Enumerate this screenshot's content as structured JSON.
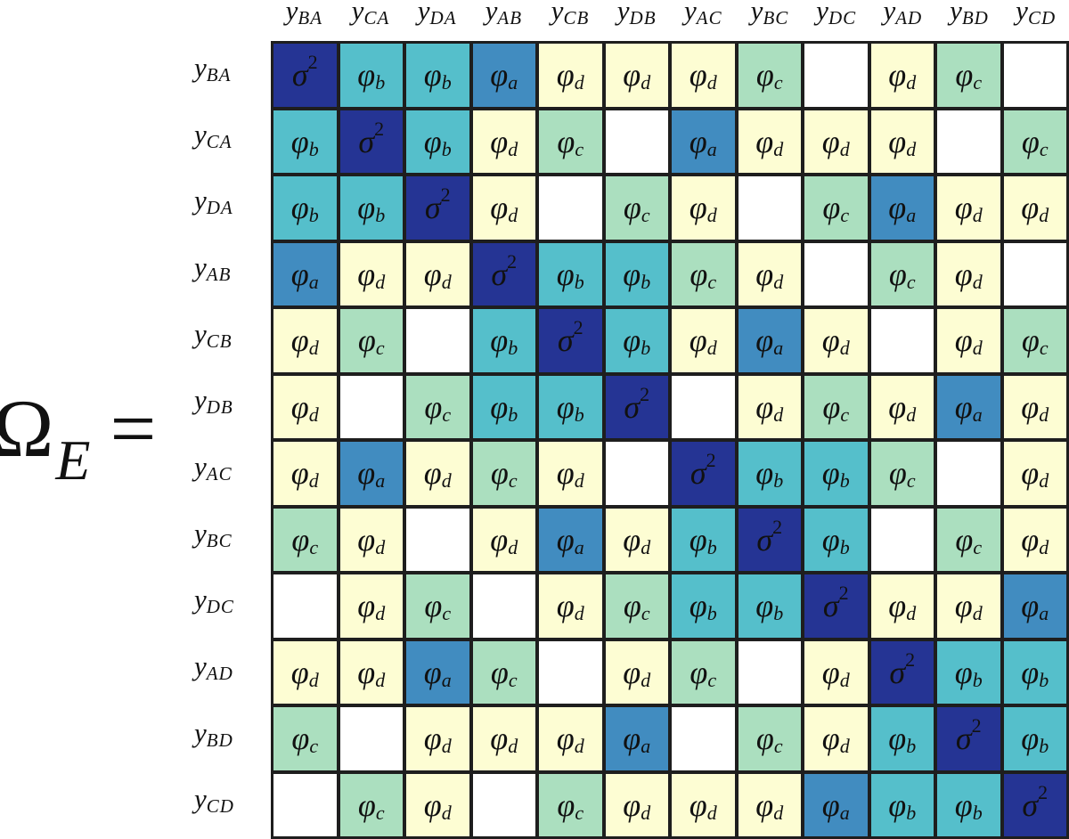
{
  "equation": {
    "lhs_symbol": "Ω",
    "lhs_subscript": "E",
    "equals": "="
  },
  "labels": [
    {
      "main": "y",
      "sub": "BA"
    },
    {
      "main": "y",
      "sub": "CA"
    },
    {
      "main": "y",
      "sub": "DA"
    },
    {
      "main": "y",
      "sub": "AB"
    },
    {
      "main": "y",
      "sub": "CB"
    },
    {
      "main": "y",
      "sub": "DB"
    },
    {
      "main": "y",
      "sub": "AC"
    },
    {
      "main": "y",
      "sub": "BC"
    },
    {
      "main": "y",
      "sub": "DC"
    },
    {
      "main": "y",
      "sub": "AD"
    },
    {
      "main": "y",
      "sub": "BD"
    },
    {
      "main": "y",
      "sub": "CD"
    }
  ],
  "legend": {
    "s": {
      "symbol": "σ",
      "sup": "2",
      "sub": "",
      "color": "#253494"
    },
    "a": {
      "symbol": "φ",
      "sup": "",
      "sub": "a",
      "color": "#418cc0"
    },
    "b": {
      "symbol": "φ",
      "sup": "",
      "sub": "b",
      "color": "#55bfcb"
    },
    "c": {
      "symbol": "φ",
      "sup": "",
      "sub": "c",
      "color": "#abdfbf"
    },
    "d": {
      "symbol": "φ",
      "sup": "",
      "sub": "d",
      "color": "#fdfdd3"
    },
    "e": {
      "symbol": "",
      "sup": "",
      "sub": "",
      "color": "#ffffff"
    }
  },
  "matrix": [
    [
      "s",
      "b",
      "b",
      "a",
      "d",
      "d",
      "d",
      "c",
      "e",
      "d",
      "c",
      "e"
    ],
    [
      "b",
      "s",
      "b",
      "d",
      "c",
      "e",
      "a",
      "d",
      "d",
      "d",
      "e",
      "c"
    ],
    [
      "b",
      "b",
      "s",
      "d",
      "e",
      "c",
      "d",
      "e",
      "c",
      "a",
      "d",
      "d"
    ],
    [
      "a",
      "d",
      "d",
      "s",
      "b",
      "b",
      "c",
      "d",
      "e",
      "c",
      "d",
      "e"
    ],
    [
      "d",
      "c",
      "e",
      "b",
      "s",
      "b",
      "d",
      "a",
      "d",
      "e",
      "d",
      "c"
    ],
    [
      "d",
      "e",
      "c",
      "b",
      "b",
      "s",
      "e",
      "d",
      "c",
      "d",
      "a",
      "d"
    ],
    [
      "d",
      "a",
      "d",
      "c",
      "d",
      "e",
      "s",
      "b",
      "b",
      "c",
      "e",
      "d"
    ],
    [
      "c",
      "d",
      "e",
      "d",
      "a",
      "d",
      "b",
      "s",
      "b",
      "e",
      "c",
      "d"
    ],
    [
      "e",
      "d",
      "c",
      "e",
      "d",
      "c",
      "b",
      "b",
      "s",
      "d",
      "d",
      "a"
    ],
    [
      "d",
      "d",
      "a",
      "c",
      "e",
      "d",
      "c",
      "e",
      "d",
      "s",
      "b",
      "b"
    ],
    [
      "c",
      "e",
      "d",
      "d",
      "d",
      "a",
      "e",
      "c",
      "d",
      "b",
      "s",
      "b"
    ],
    [
      "e",
      "c",
      "d",
      "e",
      "c",
      "d",
      "d",
      "d",
      "a",
      "b",
      "b",
      "s"
    ]
  ],
  "chart_data": {
    "type": "heatmap",
    "title": "Ω_E =",
    "x": [
      "y_BA",
      "y_CA",
      "y_DA",
      "y_AB",
      "y_CB",
      "y_DB",
      "y_AC",
      "y_BC",
      "y_DC",
      "y_AD",
      "y_BD",
      "y_CD"
    ],
    "y": [
      "y_BA",
      "y_CA",
      "y_DA",
      "y_AB",
      "y_CB",
      "y_DB",
      "y_AC",
      "y_BC",
      "y_DC",
      "y_AD",
      "y_BD",
      "y_CD"
    ],
    "categories": [
      "σ^2",
      "φ_a",
      "φ_b",
      "φ_c",
      "φ_d",
      "0 (blank)"
    ],
    "values": [
      [
        "σ^2",
        "φ_b",
        "φ_b",
        "φ_a",
        "φ_d",
        "φ_d",
        "φ_d",
        "φ_c",
        "",
        "φ_d",
        "φ_c",
        ""
      ],
      [
        "φ_b",
        "σ^2",
        "φ_b",
        "φ_d",
        "φ_c",
        "",
        "φ_a",
        "φ_d",
        "φ_d",
        "φ_d",
        "",
        "φ_c"
      ],
      [
        "φ_b",
        "φ_b",
        "σ^2",
        "φ_d",
        "",
        "φ_c",
        "φ_d",
        "",
        "φ_c",
        "φ_a",
        "φ_d",
        "φ_d"
      ],
      [
        "φ_a",
        "φ_d",
        "φ_d",
        "σ^2",
        "φ_b",
        "φ_b",
        "φ_c",
        "φ_d",
        "",
        "φ_c",
        "φ_d",
        ""
      ],
      [
        "φ_d",
        "φ_c",
        "",
        "φ_b",
        "σ^2",
        "φ_b",
        "φ_d",
        "φ_a",
        "φ_d",
        "",
        "φ_d",
        "φ_c"
      ],
      [
        "φ_d",
        "",
        "φ_c",
        "φ_b",
        "φ_b",
        "σ^2",
        "",
        "φ_d",
        "φ_c",
        "φ_d",
        "φ_a",
        "φ_d"
      ],
      [
        "φ_d",
        "φ_a",
        "φ_d",
        "φ_c",
        "φ_d",
        "",
        "σ^2",
        "φ_b",
        "φ_b",
        "φ_c",
        "",
        "φ_d"
      ],
      [
        "φ_c",
        "φ_d",
        "",
        "φ_d",
        "φ_a",
        "φ_d",
        "φ_b",
        "σ^2",
        "φ_b",
        "",
        "φ_c",
        "φ_d"
      ],
      [
        "",
        "φ_d",
        "φ_c",
        "",
        "φ_d",
        "φ_c",
        "φ_b",
        "φ_b",
        "σ^2",
        "φ_d",
        "φ_d",
        "φ_a"
      ],
      [
        "φ_d",
        "φ_d",
        "φ_a",
        "φ_c",
        "",
        "φ_d",
        "φ_c",
        "",
        "φ_d",
        "σ^2",
        "φ_b",
        "φ_b"
      ],
      [
        "φ_c",
        "",
        "φ_d",
        "φ_d",
        "φ_d",
        "φ_a",
        "",
        "φ_c",
        "φ_d",
        "φ_b",
        "σ^2",
        "φ_b"
      ],
      [
        "",
        "φ_c",
        "φ_d",
        "",
        "φ_c",
        "φ_d",
        "φ_d",
        "φ_d",
        "φ_a",
        "φ_b",
        "φ_b",
        "σ^2"
      ]
    ],
    "colors": {
      "σ^2": "#253494",
      "φ_a": "#418cc0",
      "φ_b": "#55bfcb",
      "φ_c": "#abdfbf",
      "φ_d": "#fdfdd3",
      "": "#ffffff"
    },
    "xlabel": "",
    "ylabel": "",
    "grid": true,
    "legend_position": "none"
  }
}
